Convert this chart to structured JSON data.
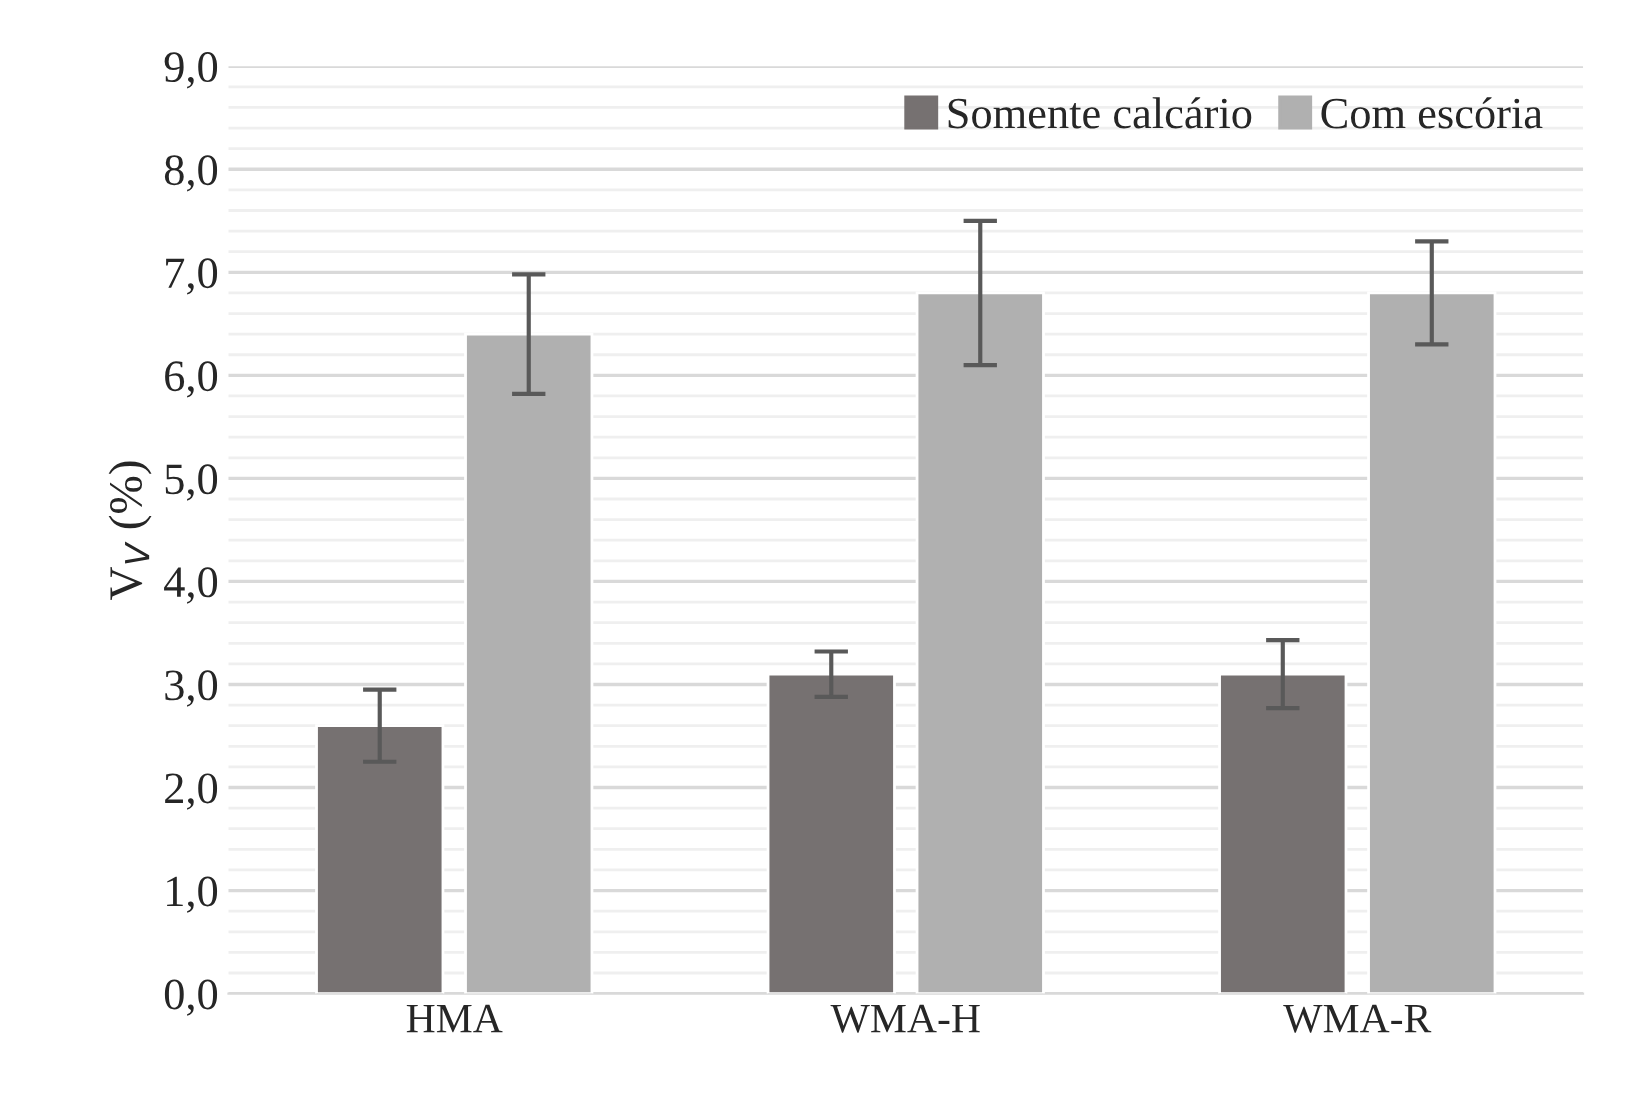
{
  "chart_data": {
    "type": "bar",
    "ylabel": "V$_{V}$ (%)",
    "categories": [
      "HMA",
      "WMA-H",
      "WMA-R"
    ],
    "series": [
      {
        "name": "Somente calcário",
        "color": "#767171",
        "values": [
          2.6,
          3.1,
          3.1
        ],
        "errors": [
          0.35,
          0.22,
          0.33
        ]
      },
      {
        "name": "Com escória",
        "color": "#b0b0b0",
        "values": [
          6.4,
          6.8,
          6.8
        ],
        "errors": [
          0.58,
          0.7,
          0.5
        ]
      }
    ],
    "ylim": [
      0,
      9
    ],
    "yticks": [
      {
        "value": 0,
        "label": "0,0"
      },
      {
        "value": 0.2,
        "label": null
      },
      {
        "value": 0.4,
        "label": null
      },
      {
        "value": 0.6,
        "label": null
      },
      {
        "value": 0.8,
        "label": null
      },
      {
        "value": 1,
        "label": "1,0"
      },
      {
        "value": 1.2,
        "label": null
      },
      {
        "value": 1.4,
        "label": null
      },
      {
        "value": 1.6,
        "label": null
      },
      {
        "value": 1.8,
        "label": null
      },
      {
        "value": 2,
        "label": "2,0"
      },
      {
        "value": 2.2,
        "label": null
      },
      {
        "value": 2.4,
        "label": null
      },
      {
        "value": 2.6,
        "label": null
      },
      {
        "value": 2.8,
        "label": null
      },
      {
        "value": 3,
        "label": "3,0"
      },
      {
        "value": 3.2,
        "label": null
      },
      {
        "value": 3.4,
        "label": null
      },
      {
        "value": 3.6,
        "label": null
      },
      {
        "value": 3.8,
        "label": null
      },
      {
        "value": 4,
        "label": "4,0"
      },
      {
        "value": 4.2,
        "label": null
      },
      {
        "value": 4.4,
        "label": null
      },
      {
        "value": 4.6,
        "label": null
      },
      {
        "value": 4.8,
        "label": null
      },
      {
        "value": 5,
        "label": "5,0"
      },
      {
        "value": 5.2,
        "label": null
      },
      {
        "value": 5.4,
        "label": null
      },
      {
        "value": 5.6,
        "label": null
      },
      {
        "value": 5.8,
        "label": null
      },
      {
        "value": 6,
        "label": "6,0"
      },
      {
        "value": 6.2,
        "label": null
      },
      {
        "value": 6.4,
        "label": null
      },
      {
        "value": 6.6,
        "label": null
      },
      {
        "value": 6.8,
        "label": null
      },
      {
        "value": 7,
        "label": "7,0"
      },
      {
        "value": 7.2,
        "label": null
      },
      {
        "value": 7.4,
        "label": null
      },
      {
        "value": 7.6,
        "label": null
      },
      {
        "value": 7.8,
        "label": null
      },
      {
        "value": 8,
        "label": "8,0"
      },
      {
        "value": 8.2,
        "label": null
      },
      {
        "value": 8.4,
        "label": null
      },
      {
        "value": 8.6,
        "label": null
      },
      {
        "value": 8.8,
        "label": null
      },
      {
        "value": 9,
        "label": "9,0"
      }
    ],
    "grid": "y",
    "legend": "top right"
  }
}
